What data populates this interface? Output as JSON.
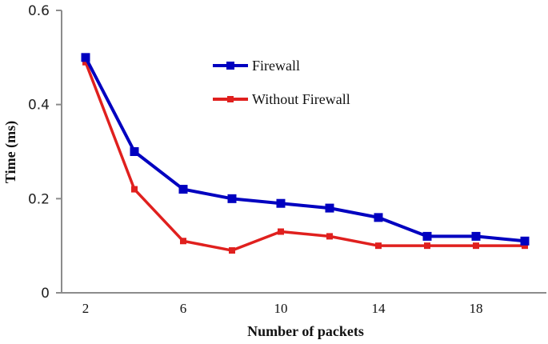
{
  "chart_data": {
    "type": "line",
    "title": "",
    "xlabel": "Number of packets",
    "ylabel": "Time (ms)",
    "x": [
      2,
      4,
      6,
      8,
      10,
      12,
      14,
      16,
      18,
      20
    ],
    "x_tick_labels": [
      "2",
      "6",
      "10",
      "14",
      "18"
    ],
    "y_tick_labels": [
      "0",
      "0.2",
      "0.4",
      "0.6"
    ],
    "ylim": [
      0,
      0.6
    ],
    "grid": false,
    "legend_position": "upper center (inside plot)",
    "series": [
      {
        "name": "Firewall",
        "color": "#0000C0",
        "marker": "square",
        "values": [
          0.5,
          0.3,
          0.22,
          0.2,
          0.19,
          0.18,
          0.16,
          0.12,
          0.12,
          0.11
        ]
      },
      {
        "name": "Without Firewall",
        "color": "#E0201E",
        "marker": "square-small",
        "values": [
          0.49,
          0.22,
          0.11,
          0.09,
          0.13,
          0.12,
          0.1,
          0.1,
          0.1,
          0.1
        ]
      }
    ]
  },
  "axis_color": "#8c8c8c"
}
